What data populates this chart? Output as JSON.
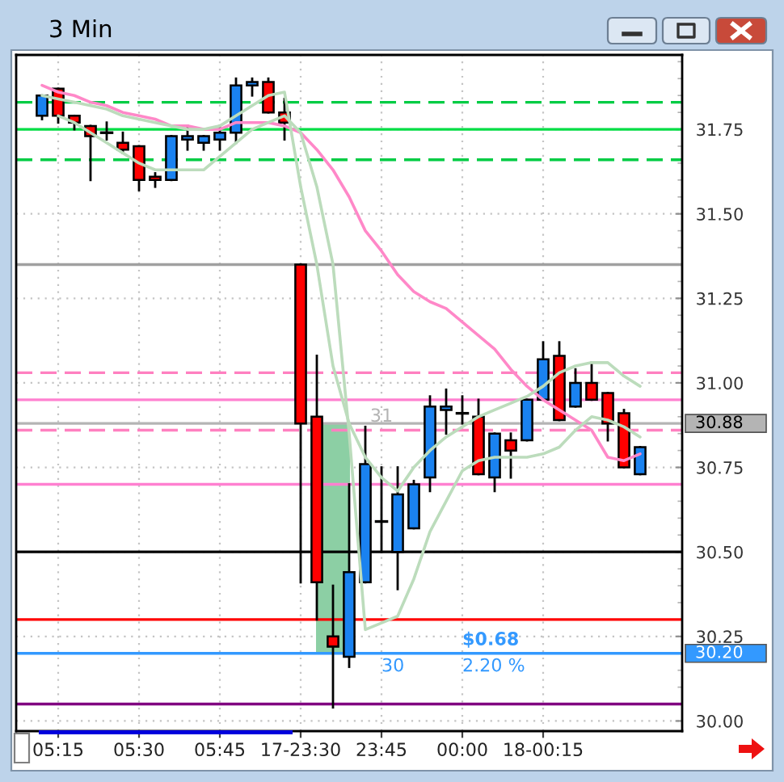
{
  "chart_data": {
    "type": "candlestick",
    "title": "3 Min",
    "categories": [
      null,
      "05:15",
      null,
      null,
      null,
      null,
      "05:30",
      null,
      null,
      null,
      null,
      "05:45",
      null,
      null,
      null,
      null,
      "17-23:30",
      null,
      null,
      null,
      null,
      "23:45",
      null,
      null,
      null,
      null,
      "00:00",
      null,
      null,
      null,
      null,
      "18-00:15",
      null,
      null,
      null,
      null,
      null,
      null
    ],
    "ohlc": [
      [
        31.79,
        31.85,
        31.78,
        31.85
      ],
      [
        31.87,
        31.87,
        31.77,
        31.79
      ],
      [
        31.79,
        31.79,
        31.75,
        31.77
      ],
      [
        31.76,
        31.76,
        31.6,
        31.73
      ],
      [
        31.74,
        31.77,
        31.72,
        31.74
      ],
      [
        31.71,
        31.74,
        31.68,
        31.69
      ],
      [
        31.7,
        31.7,
        31.57,
        31.6
      ],
      [
        31.61,
        31.62,
        31.58,
        31.6
      ],
      [
        31.6,
        31.73,
        31.6,
        31.73
      ],
      [
        31.72,
        31.76,
        31.69,
        31.73
      ],
      [
        31.71,
        31.73,
        31.69,
        31.73
      ],
      [
        31.72,
        31.76,
        31.69,
        31.74
      ],
      [
        31.74,
        31.9,
        31.71,
        31.88
      ],
      [
        31.88,
        31.9,
        31.85,
        31.89
      ],
      [
        31.89,
        31.9,
        31.8,
        31.8
      ],
      [
        31.8,
        31.84,
        31.72,
        31.77
      ],
      [
        31.35,
        31.35,
        30.41,
        30.88
      ],
      [
        30.9,
        31.08,
        30.3,
        30.41
      ],
      [
        30.25,
        30.4,
        30.04,
        30.22
      ],
      [
        30.19,
        30.7,
        30.16,
        30.44
      ],
      [
        30.41,
        30.87,
        30.41,
        30.76
      ],
      [
        30.59,
        30.75,
        30.5,
        30.59
      ],
      [
        30.5,
        30.75,
        30.39,
        30.67
      ],
      [
        30.57,
        30.71,
        30.57,
        30.7
      ],
      [
        30.72,
        30.96,
        30.68,
        30.93
      ],
      [
        30.92,
        30.98,
        30.85,
        30.93
      ],
      [
        30.91,
        30.96,
        30.88,
        30.91
      ],
      [
        30.9,
        30.95,
        30.73,
        30.73
      ],
      [
        30.72,
        30.85,
        30.68,
        30.85
      ],
      [
        30.83,
        30.85,
        30.72,
        30.8
      ],
      [
        30.83,
        30.95,
        30.83,
        30.95
      ],
      [
        30.95,
        31.12,
        30.95,
        31.07
      ],
      [
        31.08,
        31.12,
        30.89,
        30.89
      ],
      [
        30.93,
        31.04,
        30.93,
        31.0
      ],
      [
        31.0,
        31.06,
        30.95,
        30.95
      ],
      [
        30.97,
        30.97,
        30.83,
        30.88
      ],
      [
        30.91,
        30.92,
        30.75,
        30.75
      ],
      [
        30.73,
        30.81,
        30.73,
        30.81
      ]
    ],
    "colors": [
      "#1a82f0",
      "#ff0000",
      "#ff0000",
      "#ff0000",
      "#000000",
      "#ff0000",
      "#ff0000",
      "#ff0000",
      "#1a82f0",
      "#1a82f0",
      "#1a82f0",
      "#1a82f0",
      "#1a82f0",
      "#1a82f0",
      "#ff0000",
      "#ff0000",
      "#ff0000",
      "#ff0000",
      "#ff0000",
      "#1a82f0",
      "#1a82f0",
      "#000000",
      "#1a82f0",
      "#1a82f0",
      "#1a82f0",
      "#1a82f0",
      "#000000",
      "#ff0000",
      "#1a82f0",
      "#ff0000",
      "#1a82f0",
      "#1a82f0",
      "#ff0000",
      "#1a82f0",
      "#ff0000",
      "#ff0000",
      "#ff0000",
      "#1a82f0"
    ],
    "series": [
      {
        "type": "bar",
        "color": "#8ccfa4",
        "values": [
          null,
          null,
          null,
          null,
          null,
          null,
          null,
          null,
          null,
          null,
          null,
          null,
          null,
          null,
          null,
          null,
          null,
          null,
          0.68,
          null,
          null,
          null,
          null,
          null,
          null,
          null,
          null,
          null,
          null,
          null,
          null,
          null,
          null,
          null,
          null,
          null,
          null,
          null
        ],
        "base": [
          null,
          null,
          null,
          null,
          null,
          null,
          null,
          null,
          null,
          null,
          null,
          null,
          null,
          null,
          null,
          null,
          null,
          null,
          30.2,
          null,
          null,
          null,
          null,
          null,
          null,
          null,
          null,
          null,
          null,
          null,
          null,
          null,
          null,
          null,
          null,
          null,
          null,
          null
        ]
      },
      {
        "type": "line",
        "color": "#ff88c8",
        "values": [
          31.88,
          31.86,
          31.85,
          31.83,
          31.82,
          31.8,
          31.79,
          31.78,
          31.76,
          31.76,
          31.75,
          31.75,
          31.77,
          31.77,
          31.77,
          31.76,
          31.74,
          31.69,
          31.63,
          31.55,
          31.45,
          31.39,
          31.32,
          31.27,
          31.24,
          31.22,
          31.18,
          31.14,
          31.1,
          31.04,
          30.99,
          30.95,
          30.92,
          30.89,
          30.86,
          30.78,
          30.77,
          30.79
        ]
      },
      {
        "type": "line",
        "color": "#bcdcbc",
        "values": [
          31.85,
          31.84,
          31.83,
          31.82,
          31.81,
          31.79,
          31.78,
          31.77,
          31.76,
          31.75,
          31.75,
          31.76,
          31.79,
          31.82,
          31.85,
          31.86,
          31.58,
          31.35,
          31.05,
          30.88,
          30.78,
          30.72,
          30.68,
          30.75,
          30.8,
          30.84,
          30.87,
          30.9,
          30.92,
          30.94,
          30.96,
          30.99,
          31.03,
          31.05,
          31.06,
          31.06,
          31.02,
          30.99
        ]
      },
      {
        "type": "line",
        "color": "#bcdcbc",
        "values": [
          null,
          31.79,
          31.77,
          31.74,
          31.71,
          31.68,
          31.65,
          31.63,
          31.63,
          31.63,
          31.63,
          31.67,
          31.71,
          31.75,
          31.77,
          31.79,
          31.74,
          31.58,
          31.35,
          30.85,
          30.27,
          30.29,
          30.31,
          30.42,
          30.56,
          30.65,
          30.74,
          30.77,
          30.78,
          30.78,
          30.78,
          30.79,
          30.81,
          30.86,
          30.9,
          30.89,
          30.87,
          30.84
        ]
      }
    ],
    "ylim": [
      29.97,
      31.97
    ],
    "yticks": [
      {
        "value": 30.0,
        "label": "30.00"
      },
      {
        "value": 30.25,
        "label": "30.25"
      },
      {
        "value": 30.5,
        "label": "30.50"
      },
      {
        "value": 30.75,
        "label": "30.75"
      },
      {
        "value": 31.0,
        "label": "31.00"
      },
      {
        "value": 31.25,
        "label": "31.25"
      },
      {
        "value": 31.5,
        "label": "31.50"
      },
      {
        "value": 31.75,
        "label": "31.75"
      }
    ],
    "ref_lines": [
      {
        "axis": "y",
        "value": 31.83,
        "color": "#00cc44",
        "line_style": "dashed"
      },
      {
        "axis": "y",
        "value": 31.75,
        "color": "#00dd44"
      },
      {
        "axis": "y",
        "value": 31.66,
        "color": "#00cc44",
        "line_style": "dashed"
      },
      {
        "axis": "y",
        "value": 31.35,
        "color": "#a0a0a0"
      },
      {
        "axis": "y",
        "value": 31.03,
        "color": "#ff80c0",
        "line_style": "dashed"
      },
      {
        "axis": "y",
        "value": 30.95,
        "color": "#ff80d0"
      },
      {
        "axis": "y",
        "value": 30.86,
        "color": "#ff80c0",
        "line_style": "dashed"
      },
      {
        "axis": "y",
        "value": 30.7,
        "color": "#ff80d0"
      },
      {
        "axis": "y",
        "value": 30.5,
        "color": "#000000"
      },
      {
        "axis": "y",
        "value": 30.3,
        "color": "#ff0000"
      },
      {
        "axis": "y",
        "value": 30.05,
        "color": "#800080"
      },
      {
        "axis": "y",
        "value": 30.88,
        "label": "30.88",
        "color": "#b4b4b4"
      },
      {
        "axis": "y",
        "value": 30.2,
        "label": "30.20",
        "color": "#3399ff"
      }
    ],
    "annotations": [
      {
        "text": "31",
        "x": "23:45",
        "y": 30.9
      },
      "30",
      "$0.68",
      "2.20 %"
    ],
    "grid": true
  }
}
